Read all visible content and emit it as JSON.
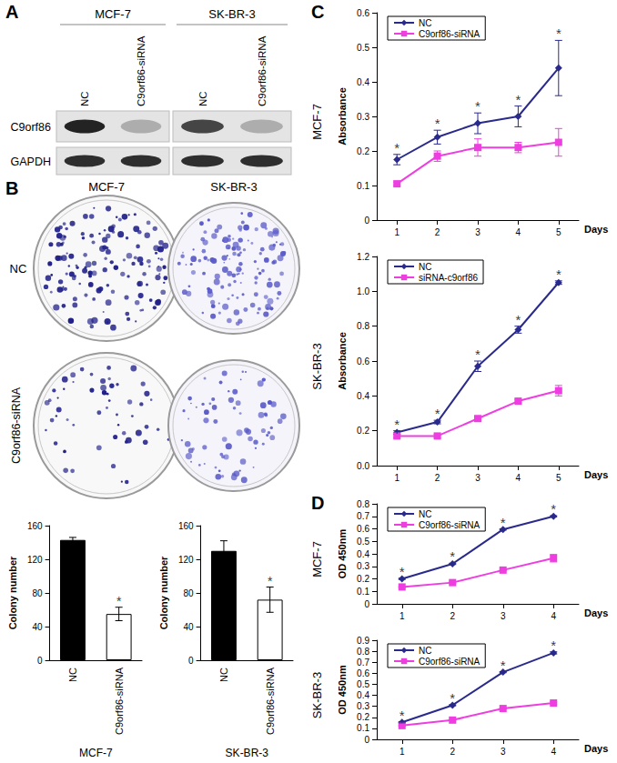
{
  "panel_labels": [
    "A",
    "B",
    "C",
    "D"
  ],
  "blot": {
    "groups": [
      {
        "label": "MCF-7",
        "lanes": [
          "NC",
          "C9orf86-siRNA"
        ]
      },
      {
        "label": "SK-BR-3",
        "lanes": [
          "NC",
          "C9orf86-siRNA"
        ]
      }
    ],
    "rows": [
      "C9orf86",
      "GAPDH"
    ]
  },
  "colony_plates": {
    "columns": [
      "MCF-7",
      "SK-BR-3"
    ],
    "rows": [
      "NC",
      "C9orf86-siRNA"
    ]
  },
  "chart_data": [
    {
      "type": "bar",
      "xlabel": "MCF-7",
      "ylabel": "Colony number",
      "categories": [
        "NC",
        "C9orf86-siRNA"
      ],
      "values": [
        143,
        55
      ],
      "errors": [
        3,
        8
      ],
      "colors": [
        "#000000",
        "#ffffff"
      ],
      "ylim": [
        0,
        160
      ],
      "yticks": [
        0,
        40,
        80,
        120,
        160
      ],
      "annotations": [
        {
          "category": "C9orf86-siRNA",
          "text": "*"
        }
      ]
    },
    {
      "type": "bar",
      "xlabel": "SK-BR-3",
      "ylabel": "Colony number",
      "categories": [
        "NC",
        "C9orf86-siRNA"
      ],
      "values": [
        130,
        72
      ],
      "errors": [
        12,
        15
      ],
      "colors": [
        "#000000",
        "#ffffff"
      ],
      "ylim": [
        0,
        160
      ],
      "yticks": [
        0,
        40,
        80,
        120,
        160
      ],
      "annotations": [
        {
          "category": "C9orf86-siRNA",
          "text": "*"
        }
      ]
    },
    {
      "type": "line",
      "title": "MCF-7",
      "xlabel": "Days",
      "ylabel": "Absorbance",
      "categories": [
        "1",
        "2",
        "3",
        "4",
        "5"
      ],
      "series": [
        {
          "name": "NC",
          "color": "#2a2a8c",
          "marker": "diamond",
          "values": [
            0.175,
            0.24,
            0.28,
            0.3,
            0.44
          ],
          "errors": [
            0.015,
            0.02,
            0.03,
            0.03,
            0.08
          ]
        },
        {
          "name": "C9orf86-siRNA",
          "color": "#ee3ee0",
          "marker": "square",
          "values": [
            0.105,
            0.185,
            0.21,
            0.21,
            0.225
          ],
          "errors": [
            0.005,
            0.015,
            0.025,
            0.015,
            0.04
          ]
        }
      ],
      "ylim": [
        0,
        0.6
      ],
      "yticks": [
        0,
        0.1,
        0.2,
        0.3,
        0.4,
        0.5,
        0.6
      ],
      "legend": "upper left",
      "annotations": [
        {
          "category": "1",
          "text": "*"
        },
        {
          "category": "2",
          "text": "*"
        },
        {
          "category": "3",
          "text": "*"
        },
        {
          "category": "4",
          "text": "*"
        },
        {
          "category": "5",
          "text": "*"
        }
      ]
    },
    {
      "type": "line",
      "title": "SK-BR-3",
      "xlabel": "Days",
      "ylabel": "Absorbance",
      "categories": [
        "1",
        "2",
        "3",
        "4",
        "5"
      ],
      "series": [
        {
          "name": "NC",
          "color": "#2a2a8c",
          "marker": "diamond",
          "values": [
            0.19,
            0.25,
            0.57,
            0.78,
            1.05
          ],
          "errors": [
            0.01,
            0.01,
            0.03,
            0.02,
            0.01
          ]
        },
        {
          "name": "siRNA-c9orf86",
          "color": "#ee3ee0",
          "marker": "square",
          "values": [
            0.17,
            0.17,
            0.27,
            0.37,
            0.43
          ],
          "errors": [
            0.01,
            0.01,
            0.01,
            0.01,
            0.03
          ]
        }
      ],
      "ylim": [
        0,
        1.2
      ],
      "yticks": [
        {
          "value": 0,
          "label": "0.0"
        },
        0.2,
        0.4,
        0.6,
        0.8,
        {
          "value": 1,
          "label": "1.0"
        },
        1.2
      ],
      "legend": "upper left",
      "annotations": [
        {
          "category": "1",
          "text": "*"
        },
        {
          "category": "2",
          "text": "*"
        },
        {
          "category": "3",
          "text": "*"
        },
        {
          "category": "4",
          "text": "*"
        },
        {
          "category": "5",
          "text": "*"
        }
      ]
    },
    {
      "type": "line",
      "title": "MCF-7",
      "xlabel": "Days",
      "ylabel": "OD 450nm",
      "categories": [
        "1",
        "2",
        "3",
        "4"
      ],
      "series": [
        {
          "name": "NC",
          "color": "#2a2a8c",
          "marker": "diamond",
          "values": [
            0.2,
            0.32,
            0.595,
            0.7
          ],
          "errors": [
            0.005,
            0.005,
            0.005,
            0.005
          ]
        },
        {
          "name": "C9orf86-siRNA",
          "color": "#ee3ee0",
          "marker": "square",
          "values": [
            0.135,
            0.17,
            0.27,
            0.365
          ],
          "errors": [
            0.005,
            0.005,
            0.005,
            0.03
          ]
        }
      ],
      "ylim": [
        0,
        0.8
      ],
      "yticks": [
        0,
        0.1,
        0.2,
        0.3,
        0.4,
        0.5,
        0.6,
        0.7,
        0.8
      ],
      "legend": "upper left",
      "annotations": [
        {
          "category": "1",
          "text": "*"
        },
        {
          "category": "2",
          "text": "*"
        },
        {
          "category": "3",
          "text": "*"
        },
        {
          "category": "4",
          "text": "*"
        }
      ]
    },
    {
      "type": "line",
      "title": "SK-BR-3",
      "xlabel": "Days",
      "ylabel": "OD 450nm",
      "categories": [
        "1",
        "2",
        "3",
        "4"
      ],
      "series": [
        {
          "name": "NC",
          "color": "#2a2a8c",
          "marker": "diamond",
          "values": [
            0.155,
            0.31,
            0.61,
            0.785
          ],
          "errors": [
            0.005,
            0.005,
            0.005,
            0.01
          ]
        },
        {
          "name": "C9orf86-siRNA",
          "color": "#ee3ee0",
          "marker": "square",
          "values": [
            0.125,
            0.175,
            0.28,
            0.33
          ],
          "errors": [
            0.005,
            0.005,
            0.005,
            0.01
          ]
        }
      ],
      "ylim": [
        0,
        0.9
      ],
      "yticks": [
        0,
        0.1,
        0.2,
        0.3,
        0.4,
        0.5,
        0.6,
        0.7,
        0.8,
        0.9
      ],
      "legend": "upper left",
      "annotations": [
        {
          "category": "1",
          "text": "*"
        },
        {
          "category": "2",
          "text": "*"
        },
        {
          "category": "3",
          "text": "*"
        },
        {
          "category": "4",
          "text": "*"
        }
      ]
    }
  ]
}
